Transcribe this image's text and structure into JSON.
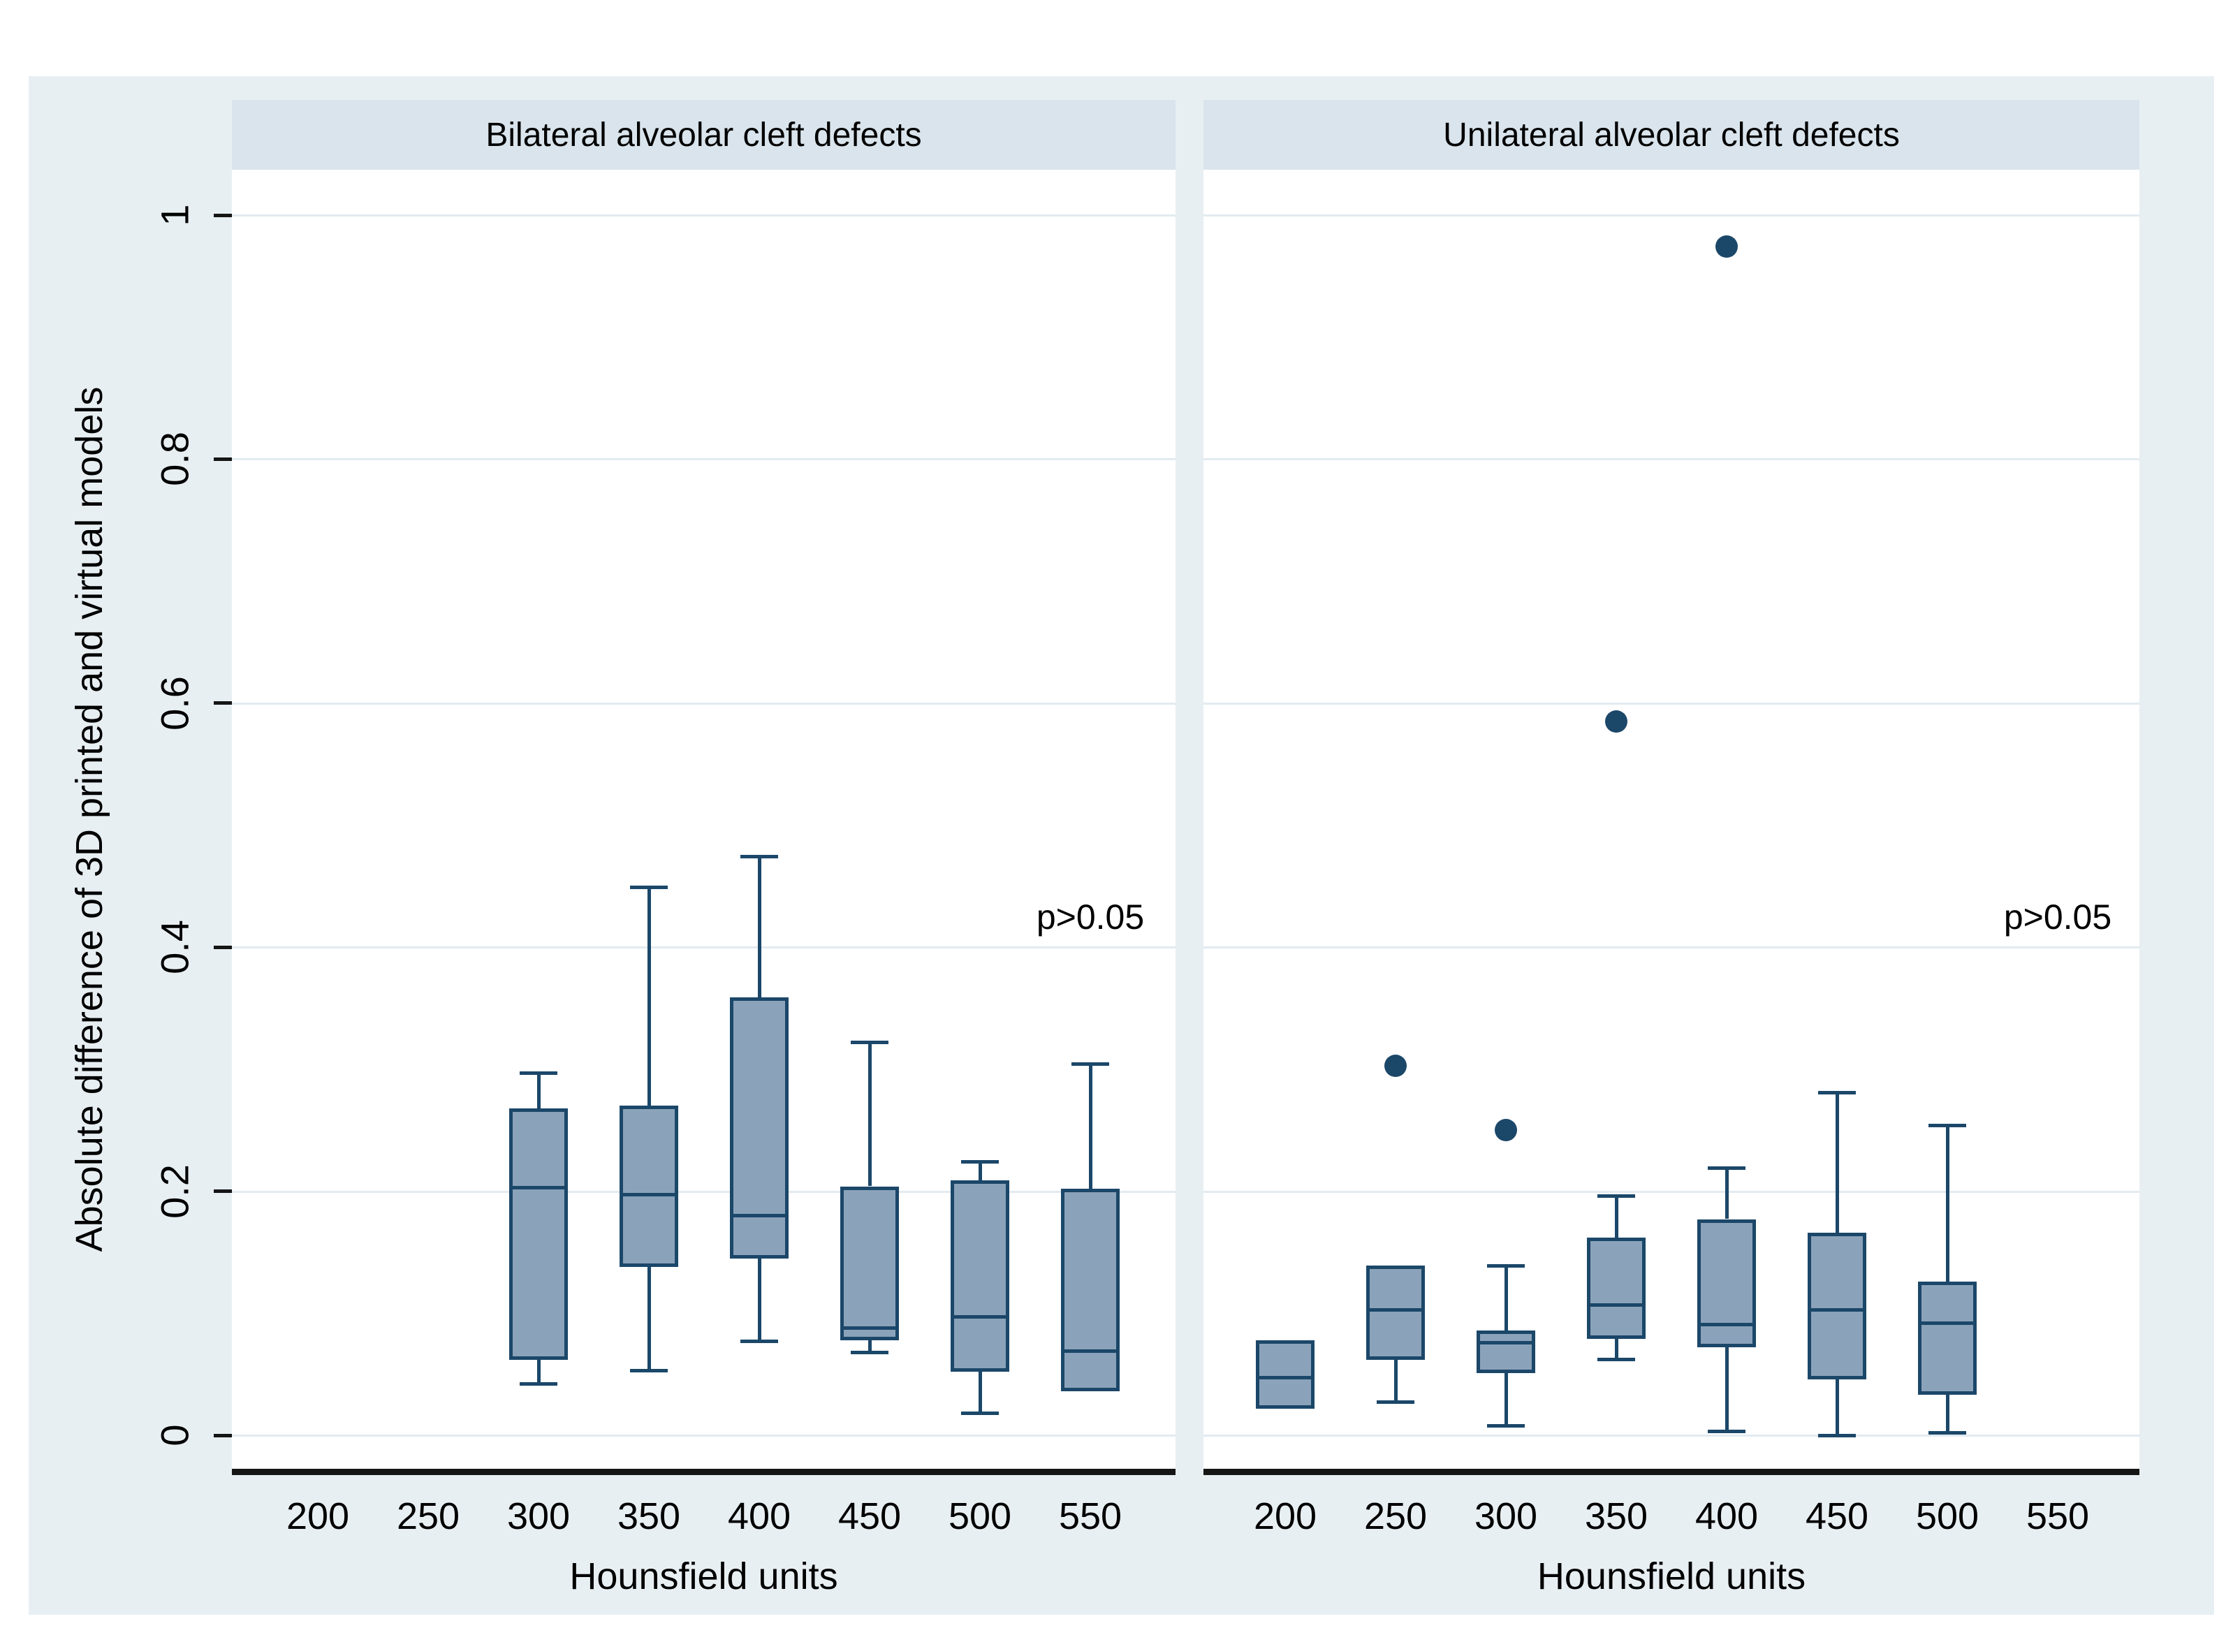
{
  "chart_data": {
    "type": "box",
    "title": "",
    "xlabel": "Hounsfield units",
    "ylabel": "Absolute difference of 3D printed and virtual models",
    "ylim": [
      0,
      1
    ],
    "grid": "horizontal",
    "legend_position": "none",
    "annotation": "p>0.05",
    "x_categories": [
      "200",
      "250",
      "300",
      "350",
      "400",
      "450",
      "500",
      "550"
    ],
    "y_ticks": [
      {
        "value": 0,
        "label": "0"
      },
      {
        "value": 0.2,
        "label": "0.2"
      },
      {
        "value": 0.4,
        "label": "0.4"
      },
      {
        "value": 0.6,
        "label": "0.6"
      },
      {
        "value": 0.8,
        "label": "0.8"
      },
      {
        "value": 1,
        "label": "1"
      }
    ],
    "panels": [
      {
        "title": "Bilateral alveolar cleft defects",
        "boxes": [
          {
            "category": "300",
            "whisker_low": 0.042,
            "q1": 0.062,
            "median": 0.203,
            "q3": 0.268,
            "whisker_high": 0.297,
            "outliers": []
          },
          {
            "category": "350",
            "whisker_low": 0.053,
            "q1": 0.138,
            "median": 0.197,
            "q3": 0.27,
            "whisker_high": 0.449,
            "outliers": []
          },
          {
            "category": "400",
            "whisker_low": 0.077,
            "q1": 0.145,
            "median": 0.18,
            "q3": 0.359,
            "whisker_high": 0.474,
            "outliers": []
          },
          {
            "category": "450",
            "whisker_low": 0.068,
            "q1": 0.078,
            "median": 0.088,
            "q3": 0.204,
            "whisker_high": 0.322,
            "outliers": []
          },
          {
            "category": "500",
            "whisker_low": 0.018,
            "q1": 0.052,
            "median": 0.097,
            "q3": 0.209,
            "whisker_high": 0.224,
            "outliers": []
          },
          {
            "category": "550",
            "whisker_low": 0.036,
            "q1": 0.036,
            "median": 0.069,
            "q3": 0.202,
            "whisker_high": 0.304,
            "outliers": []
          }
        ]
      },
      {
        "title": "Unilateral alveolar cleft defects",
        "boxes": [
          {
            "category": "200",
            "whisker_low": 0.022,
            "q1": 0.022,
            "median": 0.047,
            "q3": 0.078,
            "whisker_high": 0.078,
            "outliers": []
          },
          {
            "category": "250",
            "whisker_low": 0.027,
            "q1": 0.062,
            "median": 0.103,
            "q3": 0.139,
            "whisker_high": 0.139,
            "outliers": [
              0.303
            ]
          },
          {
            "category": "300",
            "whisker_low": 0.008,
            "q1": 0.051,
            "median": 0.076,
            "q3": 0.086,
            "whisker_high": 0.139,
            "outliers": [
              0.25
            ]
          },
          {
            "category": "350",
            "whisker_low": 0.062,
            "q1": 0.079,
            "median": 0.107,
            "q3": 0.162,
            "whisker_high": 0.196,
            "outliers": [
              0.585
            ]
          },
          {
            "category": "400",
            "whisker_low": 0.003,
            "q1": 0.072,
            "median": 0.091,
            "q3": 0.177,
            "whisker_high": 0.219,
            "outliers": [
              0.974
            ]
          },
          {
            "category": "450",
            "whisker_low": 0.0,
            "q1": 0.046,
            "median": 0.103,
            "q3": 0.166,
            "whisker_high": 0.281,
            "outliers": []
          },
          {
            "category": "500",
            "whisker_low": 0.002,
            "q1": 0.033,
            "median": 0.092,
            "q3": 0.126,
            "whisker_high": 0.254,
            "outliers": []
          }
        ]
      }
    ],
    "colors": {
      "graph_background": "#e8eff3",
      "panel_header_band": "#d9e4ec",
      "plot_background": "#ffffff",
      "gridline": "#e2ebf0",
      "axis_line": "#151515",
      "box_fill": "#8ba3ba",
      "box_stroke": "#1b4769",
      "outlier": "#1b4769",
      "text": "#000000"
    }
  }
}
